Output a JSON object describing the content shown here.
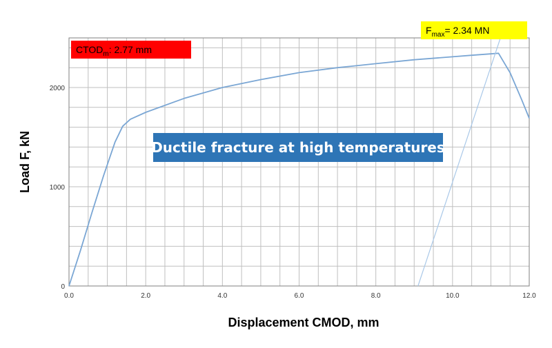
{
  "chart_data": {
    "type": "line",
    "xlabel": "Displacement CMOD, mm",
    "ylabel": "Load F, kN",
    "xlim": [
      0,
      12
    ],
    "ylim": [
      0,
      2500
    ],
    "x_ticks": [
      0,
      2,
      4,
      6,
      8,
      10,
      12
    ],
    "x_tick_labels": [
      "0.0",
      "2.0",
      "4.0",
      "6.0",
      "8.0",
      "10.0",
      "12.0"
    ],
    "y_ticks": [
      0,
      1000,
      2000
    ],
    "y_tick_labels": [
      "0",
      "1000",
      "2000"
    ],
    "grid": true,
    "grid_x_step": 0.5,
    "grid_y_step": 200,
    "series": [
      {
        "color": "#7aa6d4",
        "x": [
          0,
          0.3,
          0.6,
          0.9,
          1.2,
          1.4,
          1.6,
          2.0,
          3.0,
          4.0,
          5.0,
          6.0,
          7.0,
          8.0,
          9.0,
          10.0,
          10.5,
          11.2,
          11.5,
          11.8,
          12.0
        ],
        "y": [
          0,
          360,
          740,
          1110,
          1450,
          1610,
          1680,
          1750,
          1890,
          2000,
          2080,
          2150,
          2200,
          2240,
          2280,
          2310,
          2325,
          2345,
          2150,
          1880,
          1690
        ]
      },
      {
        "color": "#a9c8e8",
        "x": [
          9.1,
          11.25
        ],
        "y": [
          0,
          2500
        ]
      }
    ],
    "annotations": [
      {
        "id": "ctod",
        "text_main": "CTOD",
        "text_sub": "m",
        "text_rest": ":  2.77 mm",
        "background": "#ff0000"
      },
      {
        "id": "fmax",
        "text_main": "F",
        "text_sub": "max",
        "text_rest": "= 2.34 MN",
        "background": "#ffff00"
      }
    ],
    "banner": {
      "text": "Ductile fracture at high temperatures",
      "background": "#2e75b6",
      "text_color": "#ffffff"
    }
  }
}
